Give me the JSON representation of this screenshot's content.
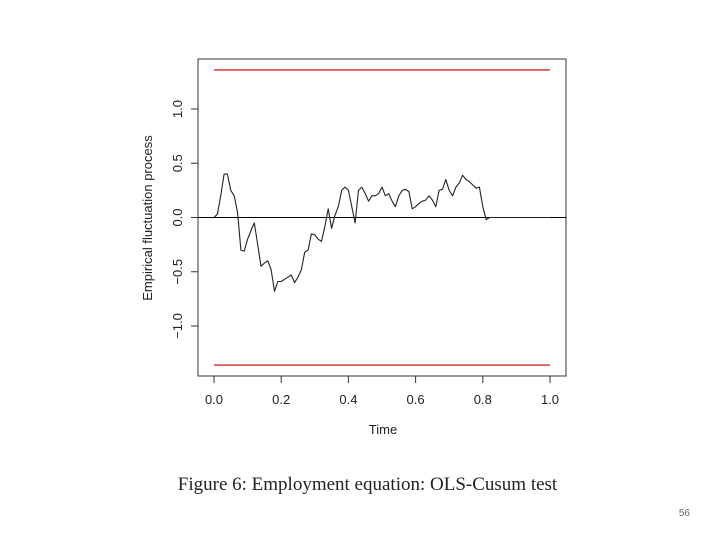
{
  "chart_data": {
    "type": "line",
    "title": "",
    "xlabel": "Time",
    "ylabel": "Empirical fluctuation process",
    "xlim": [
      0.0,
      1.0
    ],
    "ylim": [
      -1.4,
      1.4
    ],
    "x_ticks": [
      "0.0",
      "0.2",
      "0.4",
      "0.6",
      "0.8",
      "1.0"
    ],
    "y_ticks": [
      "−1.0",
      "−0.5",
      "0.0",
      "0.5",
      "1.0"
    ],
    "grid": false,
    "reference_lines": [
      {
        "y": 1.36,
        "color": "#d62728"
      },
      {
        "y": -1.36,
        "color": "#d62728"
      },
      {
        "y": 0.0,
        "color": "#000000"
      }
    ],
    "series": [
      {
        "color": "#222222",
        "x": [
          0.0,
          0.01,
          0.02,
          0.03,
          0.04,
          0.05,
          0.06,
          0.07,
          0.08,
          0.09,
          0.1,
          0.11,
          0.12,
          0.13,
          0.14,
          0.15,
          0.16,
          0.17,
          0.18,
          0.19,
          0.2,
          0.21,
          0.22,
          0.23,
          0.24,
          0.25,
          0.26,
          0.27,
          0.28,
          0.29,
          0.3,
          0.31,
          0.32,
          0.33,
          0.34,
          0.35,
          0.36,
          0.37,
          0.38,
          0.39,
          0.4,
          0.41,
          0.42,
          0.43,
          0.44,
          0.45,
          0.46,
          0.47,
          0.48,
          0.49,
          0.5,
          0.51,
          0.52,
          0.53,
          0.54,
          0.55,
          0.56,
          0.57,
          0.58,
          0.59,
          0.6,
          0.61,
          0.62,
          0.63,
          0.64,
          0.65,
          0.66,
          0.67,
          0.68,
          0.69,
          0.7,
          0.71,
          0.72,
          0.73,
          0.74,
          0.75,
          0.76,
          0.77,
          0.78,
          0.79,
          0.8,
          0.81,
          0.82,
          0.83,
          0.84,
          0.85,
          0.86,
          0.87,
          0.88,
          0.89,
          0.9,
          0.91,
          0.92,
          0.93,
          0.94,
          0.95,
          0.96,
          0.97,
          0.98,
          0.99,
          1.0
        ],
        "y": [
          0.0,
          0.03,
          0.2,
          0.4,
          0.4,
          0.25,
          0.2,
          0.05,
          -0.3,
          -0.31,
          -0.2,
          -0.12,
          -0.05,
          -0.25,
          -0.45,
          -0.42,
          -0.4,
          -0.48,
          -0.68,
          -0.59,
          -0.59,
          -0.57,
          -0.55,
          -0.53,
          -0.6,
          -0.55,
          -0.48,
          -0.32,
          -0.3,
          -0.15,
          -0.16,
          -0.2,
          -0.22,
          -0.08,
          0.08,
          -0.1,
          0.02,
          0.1,
          0.25,
          0.28,
          0.25,
          0.1,
          -0.05,
          0.25,
          0.28,
          0.22,
          0.15,
          0.2,
          0.2,
          0.22,
          0.28,
          0.2,
          0.22,
          0.15,
          0.1,
          0.2,
          0.25,
          0.26,
          0.24,
          0.08,
          0.1,
          0.13,
          0.15,
          0.16,
          0.2,
          0.16,
          0.1,
          0.25,
          0.26,
          0.35,
          0.25,
          0.2,
          0.28,
          0.32,
          0.39,
          0.35,
          0.33,
          0.3,
          0.27,
          0.28,
          0.1,
          -0.02,
          0.0,
          0.0,
          0.0,
          0.0,
          0.0,
          0.0,
          0.0,
          0.0,
          0.0,
          0.0,
          0.0,
          0.0,
          0.0,
          0.0,
          0.0,
          0.0,
          0.0,
          0.0,
          0.0
        ]
      }
    ]
  },
  "caption": "Figure 6: Employment equation: OLS-Cusum test",
  "page_number": "56"
}
